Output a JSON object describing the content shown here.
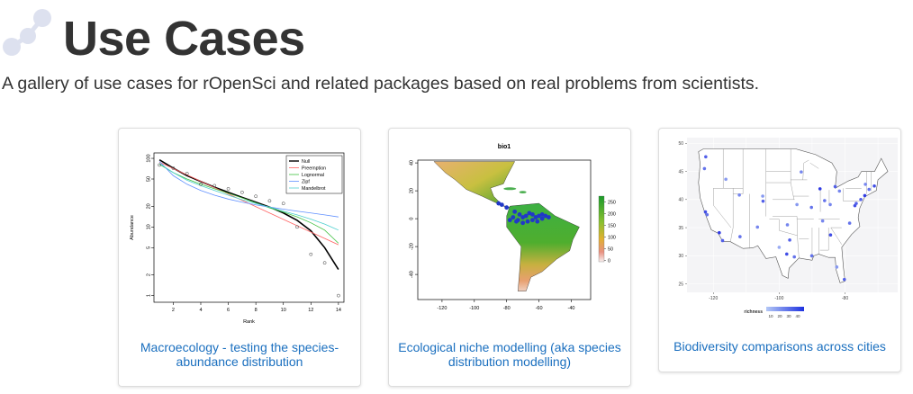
{
  "header": {
    "title": "Use Cases",
    "subtitle": "A gallery of use cases for rOpenSci and related packages based on real problems from scientists."
  },
  "colors": {
    "title": "#333333",
    "link": "#1a6fbf",
    "logo": "#d9ddee"
  },
  "cards": [
    {
      "caption": "Macroecology - testing the species-abundance distribution",
      "chart_data": {
        "type": "line",
        "xlabel": "Rank",
        "ylabel": "Abundance",
        "yscale": "log",
        "xticks": [
          "2",
          "4",
          "6",
          "8",
          "10",
          "12",
          "14"
        ],
        "yticks": [
          "100",
          "50",
          "20",
          "10",
          "5",
          "2",
          "1"
        ],
        "legend": [
          "Null",
          "Preemption",
          "Lognormal",
          "Zipf",
          "Mandelbrot"
        ],
        "legend_position": "top-right",
        "legend_colors": [
          "#000000",
          "#ff6060",
          "#40c040",
          "#6090ff",
          "#50d0d0"
        ],
        "observed_points": {
          "x": [
            1,
            2,
            3,
            4,
            5,
            6,
            7,
            8,
            9,
            10,
            11,
            12,
            13,
            14
          ],
          "y": [
            80,
            72,
            60,
            42,
            40,
            36,
            32,
            28,
            24,
            22,
            10,
            4,
            3,
            1
          ]
        },
        "series": [
          {
            "name": "Null",
            "x": [
              1,
              2,
              3,
              4,
              5,
              6,
              7,
              8,
              9,
              10,
              11,
              12,
              13,
              14
            ],
            "y": [
              95,
              72,
              56,
              46,
              38,
              32,
              27,
              23,
              19.5,
              16,
              12.5,
              8.8,
              5.0,
              2.4
            ]
          },
          {
            "name": "Preemption",
            "x": [
              1,
              14
            ],
            "y": [
              88,
              5.5
            ]
          },
          {
            "name": "Lognormal",
            "x": [
              1,
              2,
              3,
              4,
              5,
              6,
              7,
              8,
              9,
              10,
              11,
              12,
              13,
              14
            ],
            "y": [
              82,
              62,
              50,
              42,
              36,
              31,
              26.5,
              22.5,
              19,
              16.5,
              14,
              11.5,
              9,
              5.8
            ]
          },
          {
            "name": "Zipf",
            "x": [
              1,
              2,
              3,
              4,
              5,
              6,
              7,
              8,
              9,
              10,
              11,
              12,
              13,
              14
            ],
            "y": [
              90,
              56,
              42,
              34,
              29,
              25.5,
              23,
              21,
              19.5,
              18.2,
              17,
              16,
              15,
              14
            ]
          },
          {
            "name": "Mandelbrot",
            "x": [
              1,
              2,
              3,
              4,
              5,
              6,
              7,
              8,
              9,
              10,
              11,
              12,
              13,
              14
            ],
            "y": [
              84,
              62,
              48,
              40,
              34,
              29,
              25,
              22,
              19.5,
              17,
              15,
              13,
              11,
              9
            ]
          }
        ]
      }
    },
    {
      "caption": "Ecological niche modelling (aka species distribution modelling)",
      "chart_data": {
        "type": "heatmap",
        "title": "bio1",
        "xticks": [
          "-120",
          "-100",
          "-80",
          "-60",
          "-40"
        ],
        "yticks": [
          "40",
          "20",
          "0",
          "-20",
          "-40"
        ],
        "colorbar_ticks": [
          "250",
          "200",
          "150",
          "100",
          "50",
          "0"
        ]
      }
    },
    {
      "caption": "Biodiversity comparisons across cities",
      "chart_data": {
        "type": "scatter",
        "xticks": [
          "-120",
          "-100",
          "-80"
        ],
        "yticks": [
          "50",
          "45",
          "40",
          "35",
          "30",
          "25"
        ],
        "legend_title": "richness",
        "legend_ticks": [
          "10",
          "20",
          "30",
          "40"
        ],
        "x": [
          -122.4,
          -121.9,
          -118.2,
          -117.2,
          -112.1,
          -111.9,
          -104.9,
          -97.7,
          -96.8,
          -95.4,
          -93.3,
          -90.1,
          -87.6,
          -86.2,
          -84.4,
          -83.0,
          -81.7,
          -80.2,
          -78.6,
          -77.0,
          -75.2,
          -74.0,
          -71.1,
          -73.8,
          -122.3,
          -122.7,
          -116.2,
          -106.6,
          -105.0,
          -100.0,
          -90.2,
          -84.5,
          -82.5,
          -86.8,
          -76.6,
          -72.7,
          -97.5,
          -94.6
        ],
        "y": [
          37.8,
          37.3,
          34.1,
          32.7,
          40.8,
          33.4,
          39.7,
          30.3,
          32.8,
          29.8,
          44.9,
          30.0,
          41.9,
          39.8,
          33.7,
          42.3,
          41.5,
          25.8,
          35.8,
          38.9,
          40.0,
          40.7,
          42.4,
          42.7,
          47.6,
          45.5,
          43.6,
          35.1,
          40.6,
          31.5,
          38.6,
          39.1,
          28.0,
          36.2,
          39.3,
          41.8,
          35.5,
          39.1
        ],
        "richness": [
          35,
          25,
          40,
          30,
          20,
          25,
          30,
          35,
          30,
          25,
          20,
          25,
          40,
          25,
          35,
          30,
          20,
          30,
          25,
          35,
          30,
          40,
          35,
          20,
          30,
          25,
          15,
          20,
          15,
          10,
          25,
          20,
          15,
          20,
          30,
          25,
          20,
          15
        ]
      }
    }
  ]
}
